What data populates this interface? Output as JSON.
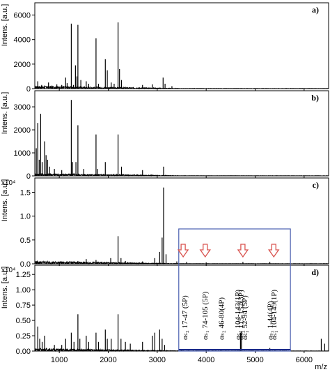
{
  "chart_data": [
    {
      "type": "line",
      "panel_label": "a)",
      "ylabel": "Intens. [a.u.]",
      "multiplier": "",
      "ylim": [
        0,
        7000
      ],
      "yticks": [
        0,
        2000,
        4000,
        6000
      ],
      "ytick_labels": [
        "0",
        "2000",
        "4000",
        "6000"
      ],
      "xlim": [
        500,
        6500
      ],
      "peaks": [
        [
          560,
          600
        ],
        [
          640,
          300
        ],
        [
          700,
          250
        ],
        [
          780,
          500
        ],
        [
          850,
          250
        ],
        [
          950,
          350
        ],
        [
          1050,
          300
        ],
        [
          1130,
          900
        ],
        [
          1160,
          450
        ],
        [
          1245,
          5300
        ],
        [
          1290,
          300
        ],
        [
          1330,
          1900
        ],
        [
          1360,
          1000
        ],
        [
          1380,
          5200
        ],
        [
          1440,
          700
        ],
        [
          1550,
          600
        ],
        [
          1600,
          400
        ],
        [
          1750,
          4100
        ],
        [
          1800,
          400
        ],
        [
          1940,
          2400
        ],
        [
          1980,
          1500
        ],
        [
          2060,
          500
        ],
        [
          2120,
          400
        ],
        [
          2200,
          5400
        ],
        [
          2230,
          1600
        ],
        [
          2270,
          700
        ],
        [
          2700,
          300
        ],
        [
          2900,
          350
        ],
        [
          3120,
          900
        ],
        [
          3160,
          400
        ],
        [
          3300,
          200
        ]
      ],
      "series": [
        {
          "name": "",
          "peaks_ref": "peaks"
        }
      ]
    },
    {
      "type": "line",
      "panel_label": "b)",
      "ylabel": "Intens. [a.u.]",
      "multiplier": "",
      "ylim": [
        0,
        3700
      ],
      "yticks": [
        0,
        1000,
        2000,
        3000
      ],
      "ytick_labels": [
        "0",
        "1000",
        "2000",
        "3000"
      ],
      "xlim": [
        500,
        6500
      ],
      "peaks": [
        [
          530,
          1200
        ],
        [
          560,
          2300
        ],
        [
          590,
          700
        ],
        [
          620,
          2700
        ],
        [
          650,
          600
        ],
        [
          700,
          1500
        ],
        [
          730,
          900
        ],
        [
          760,
          700
        ],
        [
          800,
          400
        ],
        [
          900,
          300
        ],
        [
          1050,
          250
        ],
        [
          1245,
          3300
        ],
        [
          1270,
          600
        ],
        [
          1340,
          600
        ],
        [
          1380,
          2200
        ],
        [
          1500,
          300
        ],
        [
          1750,
          1800
        ],
        [
          1780,
          300
        ],
        [
          1940,
          600
        ],
        [
          2200,
          1800
        ],
        [
          2270,
          400
        ],
        [
          2700,
          250
        ],
        [
          3130,
          400
        ]
      ]
    },
    {
      "type": "line",
      "panel_label": "c)",
      "ylabel": "Intens. [a.u.]",
      "multiplier": "x10⁴",
      "ylim": [
        0,
        1.8
      ],
      "yticks": [
        0,
        0.5,
        1.0,
        1.5
      ],
      "ytick_labels": [
        "0.0",
        "0.5",
        "1.0",
        "1.5"
      ],
      "xlim": [
        500,
        6500
      ],
      "peaks": [
        [
          600,
          0.05
        ],
        [
          900,
          0.04
        ],
        [
          1250,
          0.05
        ],
        [
          1380,
          0.06
        ],
        [
          1550,
          0.1
        ],
        [
          1750,
          0.08
        ],
        [
          2050,
          0.12
        ],
        [
          2200,
          0.58
        ],
        [
          2260,
          0.12
        ],
        [
          2350,
          0.06
        ],
        [
          2700,
          0.05
        ],
        [
          2950,
          0.12
        ],
        [
          3050,
          0.25
        ],
        [
          3100,
          0.55
        ],
        [
          3130,
          1.6
        ],
        [
          3180,
          0.2
        ],
        [
          3400,
          0.05
        ],
        [
          3600,
          0.04
        ],
        [
          4000,
          0.03
        ],
        [
          4750,
          0.04
        ],
        [
          5300,
          0.04
        ]
      ],
      "arrows_x": [
        3530,
        3980,
        4750,
        5380
      ]
    },
    {
      "type": "line",
      "panel_label": "d)",
      "ylabel": "Intens. [a.u.]",
      "multiplier": "x10⁴",
      "ylim": [
        0,
        1.4
      ],
      "yticks": [
        0,
        0.25,
        0.5,
        0.75,
        1.0,
        1.25
      ],
      "ytick_labels": [
        "0.00",
        "0.25",
        "0.50",
        "0.75",
        "1.00",
        "1.25"
      ],
      "xlim": [
        500,
        6500
      ],
      "peaks": [
        [
          560,
          0.4
        ],
        [
          600,
          0.2
        ],
        [
          650,
          0.15
        ],
        [
          700,
          0.25
        ],
        [
          900,
          0.1
        ],
        [
          1050,
          0.1
        ],
        [
          1130,
          0.2
        ],
        [
          1245,
          0.3
        ],
        [
          1300,
          0.15
        ],
        [
          1380,
          0.6
        ],
        [
          1420,
          0.2
        ],
        [
          1550,
          0.25
        ],
        [
          1600,
          0.15
        ],
        [
          1750,
          0.3
        ],
        [
          1800,
          0.15
        ],
        [
          1940,
          0.35
        ],
        [
          1980,
          0.2
        ],
        [
          2060,
          0.2
        ],
        [
          2200,
          0.6
        ],
        [
          2260,
          0.2
        ],
        [
          2350,
          0.15
        ],
        [
          2450,
          0.12
        ],
        [
          2700,
          0.15
        ],
        [
          2900,
          0.25
        ],
        [
          2950,
          0.3
        ],
        [
          3050,
          0.35
        ],
        [
          3100,
          0.2
        ],
        [
          3150,
          0.1
        ],
        [
          3500,
          0.03
        ],
        [
          4000,
          0.02
        ],
        [
          4300,
          0.03
        ],
        [
          4700,
          0.3
        ],
        [
          4720,
          0.32
        ],
        [
          5300,
          0.05
        ],
        [
          6350,
          0.2
        ],
        [
          6420,
          0.12
        ]
      ],
      "annotations": [
        {
          "text": "αₛ₂ 17-47 (5P)",
          "x": 3560
        },
        {
          "text": "αₛ₁ 74-105 (5P)",
          "x": 3970
        },
        {
          "text": "αₛ₂ 46-80(4P)",
          "x": 4300
        },
        {
          "text": "αₛ₁ 104-143(1P)",
          "x": 4640
        },
        {
          "text": "αₛ₂ 115-152(3P)",
          "x": 4700
        },
        {
          "text": "αₛ₁ 52-94 (5P)",
          "x": 4780
        },
        {
          "text": "αₛ₂ 1-44(4P)",
          "x": 5300
        },
        {
          "text": "αₛ₁ 104-149(1P)",
          "x": 5380
        }
      ]
    }
  ],
  "xaxis": {
    "ticks": [
      1000,
      2000,
      3000,
      4000,
      5000,
      6000
    ],
    "tick_labels": [
      "1000",
      "2000",
      "3000",
      "4000",
      "5000",
      "6000"
    ],
    "label": "m/z"
  },
  "colors": {
    "trace": "#000000",
    "highlight_box": "#4a5fb0",
    "arrow": "#d9534f",
    "baseline_highlight": "#1a2a8a"
  }
}
